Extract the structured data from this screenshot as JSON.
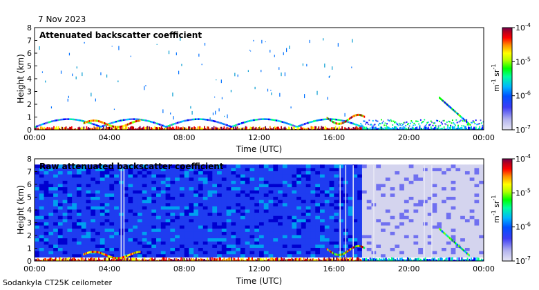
{
  "date": "7 Nov 2023",
  "footer": "Sodankyla CT25K ceilometer",
  "chart_data": [
    {
      "type": "heatmap",
      "title": "Attenuated backscatter coefficient",
      "xlabel": "Time (UTC)",
      "ylabel": "Height (km)",
      "xlim": [
        0,
        24
      ],
      "ylim": [
        0,
        8
      ],
      "x_ticks": [
        "00:00",
        "04:00",
        "08:00",
        "12:00",
        "16:00",
        "20:00",
        "00:00"
      ],
      "y_ticks": [
        "0",
        "1",
        "2",
        "3",
        "4",
        "5",
        "6",
        "7",
        "8"
      ],
      "colorbar": {
        "label": "m-1 sr-1",
        "range": [
          1e-07,
          0.0001
        ],
        "ticks": [
          "10",
          "10",
          "10",
          "10"
        ],
        "exponents": [
          "-7",
          "-6",
          "-5",
          "-4"
        ]
      },
      "features": [
        {
          "name": "surface layer",
          "time_start": 0,
          "time_end": 24,
          "height_top": 0.3,
          "level": "high"
        },
        {
          "name": "low cloud",
          "time_start": 2.5,
          "time_end": 5.5,
          "height_top": 0.8,
          "level": "high"
        },
        {
          "name": "low cloud",
          "time_start": 15.5,
          "time_end": 17.5,
          "height_top": 1.3,
          "level": "high"
        },
        {
          "name": "fallstreak",
          "time_start": 21.5,
          "time_end": 23,
          "height_top": 2.6,
          "level": "medium"
        }
      ]
    },
    {
      "type": "heatmap",
      "title": "Raw attenuated backscatter coefficient",
      "xlabel": "Time (UTC)",
      "ylabel": "Height (km)",
      "xlim": [
        0,
        24
      ],
      "ylim": [
        0,
        8
      ],
      "x_ticks": [
        "00:00",
        "04:00",
        "08:00",
        "12:00",
        "16:00",
        "20:00",
        "00:00"
      ],
      "y_ticks": [
        "0",
        "1",
        "2",
        "3",
        "4",
        "5",
        "6",
        "7",
        "8"
      ],
      "colorbar": {
        "label": "m-1 sr-1",
        "range": [
          1e-07,
          0.0001
        ],
        "ticks": [
          "10",
          "10",
          "10",
          "10"
        ],
        "exponents": [
          "-7",
          "-6",
          "-5",
          "-4"
        ]
      },
      "features": [
        {
          "name": "noise field",
          "time_start": 0,
          "time_end": 17.5,
          "height_top": 7.5,
          "level": "low"
        },
        {
          "name": "sparse noise",
          "time_start": 17.5,
          "time_end": 24,
          "height_top": 7.5,
          "level": "very low"
        },
        {
          "name": "fallstreak",
          "time_start": 21.5,
          "time_end": 23,
          "height_top": 2.6,
          "level": "medium"
        }
      ]
    }
  ],
  "colors": {
    "colormap": [
      "#e6e6f5",
      "#b4b4ee",
      "#5a5af0",
      "#0000ff",
      "#0080ff",
      "#00c8ff",
      "#00ff80",
      "#00ff00",
      "#80ff00",
      "#ffff00",
      "#ff8000",
      "#ff0000",
      "#c00000",
      "#700050"
    ]
  }
}
